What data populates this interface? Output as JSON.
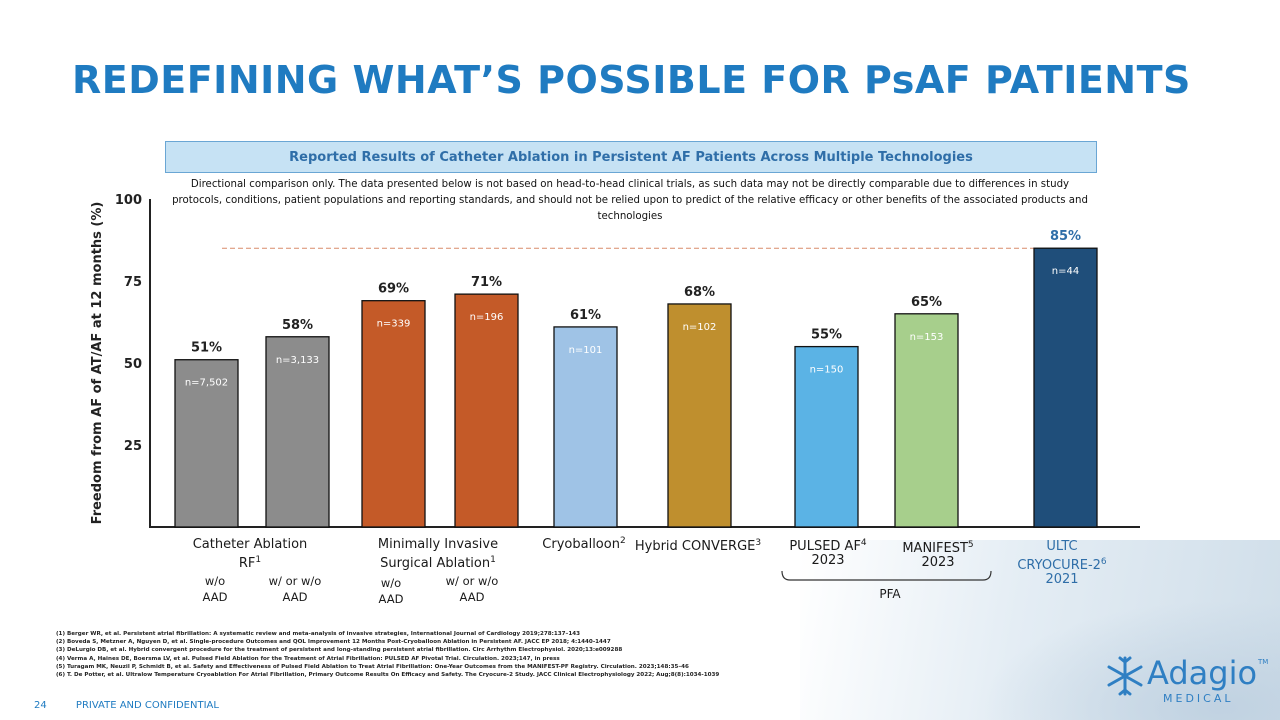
{
  "slide": {
    "title": "REDEFINING WHAT’S POSSIBLE FOR PsAF PATIENTS",
    "subtitle": "Reported Results of Catheter Ablation in Persistent AF Patients Across Multiple Technologies",
    "disclaimer": "Directional comparison only. The data presented below is not based on head-to-head clinical trials, as such data may not be directly comparable due to differences in study protocols, conditions, patient populations and reporting standards, and  should not be relied upon to predict of the relative efficacy or other benefits of the associated products and technologies",
    "page_number": "24",
    "confidential": "PRIVATE AND CONFIDENTIAL",
    "logo_name": "Adagio",
    "logo_sub": "MEDICAL",
    "logo_tm": "TM",
    "references": [
      "(1) Berger WR, et al. Persistent atrial fibrillation: A systematic review and meta-analysis of invasive strategies, International Journal of Cardiology 2019;278:137–143",
      "(2) Boveda S, Metzner A, Nguyen D, et al. Single-procedure Outcomes and QOL Improvement 12 Months Post-Cryoballoon Ablation in Persistent AF. JACC EP 2018; 4:1440-1447",
      "(3) DeLurgio DB, et al. Hybrid convergent procedure for the treatment of persistent and long-standing persistent atrial fibrillation. Circ Arrhythm Electrophysiol. 2020;13:e009288",
      "(4) Verma A, Haines DE, Boersma LV, et al. Pulsed Field Ablation for the Treatment of Atrial Fibrillation: PULSED AF Pivotal Trial. Circulation. 2023;147, in press",
      "(5) Turagam MK, Neuzil P, Schmidt B, et al. Safety and Effectiveness of Pulsed Field Ablation to Treat Atrial Fibrillation: One-Year Outcomes from the MANIFEST-PF Registry. Circulation. 2023;148:35–46",
      "(6) T. De Potter, et al. Ultralow Temperature Cryoablation For Atrial Fibrillation, Primary Outcome Results On Efficacy and Safety. The Cryocure-2 Study. JACC Clinical Electrophysiology 2022; Aug;8(8):1034-1039"
    ]
  },
  "chart_data": {
    "type": "bar",
    "ylabel": "Freedom from AF of AT/AF at 12 months (%)",
    "ylim": [
      0,
      100
    ],
    "yticks": [
      25,
      50,
      75,
      100
    ],
    "reference_line": {
      "value": 85,
      "style": "dashed"
    },
    "bars": [
      {
        "group": "rf",
        "value": 51,
        "label": "51%",
        "n": "n=7,502",
        "color": "#8c8c8c"
      },
      {
        "group": "rf",
        "value": 58,
        "label": "58%",
        "n": "n=3,133",
        "color": "#8c8c8c"
      },
      {
        "group": "surgical",
        "value": 69,
        "label": "69%",
        "n": "n=339",
        "color": "#c45a28"
      },
      {
        "group": "surgical",
        "value": 71,
        "label": "71%",
        "n": "n=196",
        "color": "#c45a28"
      },
      {
        "group": "cryo",
        "value": 61,
        "label": "61%",
        "n": "n=101",
        "color": "#9fc3e6"
      },
      {
        "group": "hybrid",
        "value": 68,
        "label": "68%",
        "n": "n=102",
        "color": "#bf8f2e"
      },
      {
        "group": "pfa",
        "value": 55,
        "label": "55%",
        "n": "n=150",
        "color": "#5bb3e5"
      },
      {
        "group": "pfa",
        "value": 65,
        "label": "65%",
        "n": "n=153",
        "color": "#a7cf8c"
      },
      {
        "group": "ultc",
        "value": 85,
        "label": "85%",
        "n": "n=44",
        "color": "#1f4e7a"
      }
    ],
    "categories": [
      {
        "lines": [
          "Catheter Ablation",
          "RF"
        ],
        "sup": "1",
        "color": "#1a1a1a"
      },
      {
        "lines": [
          "Minimally Invasive",
          "Surgical Ablation"
        ],
        "sup": "1",
        "color": "#1a1a1a"
      },
      {
        "lines": [
          "Cryoballoon"
        ],
        "sup": "2",
        "color": "#1a1a1a"
      },
      {
        "lines": [
          "Hybrid CONVERGE"
        ],
        "sup": "3",
        "color": "#1a1a1a"
      },
      {
        "lines": [
          "PULSED AF",
          "2023"
        ],
        "sup": "4",
        "color": "#1a1a1a"
      },
      {
        "lines": [
          "MANIFEST",
          "2023"
        ],
        "sup": "5",
        "color": "#1a1a1a"
      },
      {
        "lines": [
          "ULTC",
          "CRYOCURE-2",
          "2021"
        ],
        "sup": "6",
        "color": "#2f6ea8"
      }
    ],
    "sub_labels": [
      {
        "lines": [
          "w/o",
          "AAD"
        ]
      },
      {
        "lines": [
          "w/ or w/o",
          "AAD"
        ]
      },
      {
        "lines": [
          "w/o",
          "AAD"
        ]
      },
      {
        "lines": [
          "w/ or w/o",
          "AAD"
        ]
      }
    ],
    "bracket_label": "PFA"
  }
}
